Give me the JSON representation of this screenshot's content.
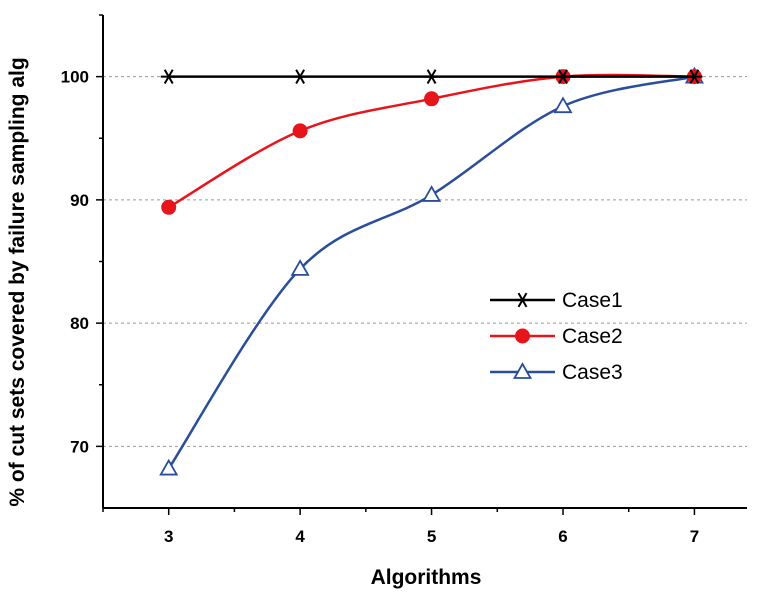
{
  "chart_data": {
    "type": "line",
    "xlabel": "Algorithms",
    "ylabel": "% of cut sets covered by failure sampling alg",
    "x": [
      3,
      4,
      5,
      6,
      7
    ],
    "xlim": [
      2.5,
      7.4
    ],
    "ylim": [
      65,
      105
    ],
    "xticks": [
      "3",
      "4",
      "5",
      "6",
      "7"
    ],
    "yticks": [
      "70",
      "80",
      "90",
      "100"
    ],
    "grid": "horizontal dashed",
    "legend_position": "right-middle",
    "series": [
      {
        "name": "Case1",
        "values": [
          100,
          100,
          100,
          100,
          100
        ],
        "color": "#000000",
        "marker": "asterisk"
      },
      {
        "name": "Case2",
        "values": [
          89.4,
          95.6,
          98.2,
          100,
          100
        ],
        "color": "#e8141b",
        "marker": "filled-circle"
      },
      {
        "name": "Case3",
        "values": [
          68.2,
          84.4,
          90.4,
          97.6,
          100
        ],
        "color": "#2a4d9c",
        "marker": "open-triangle"
      }
    ]
  }
}
